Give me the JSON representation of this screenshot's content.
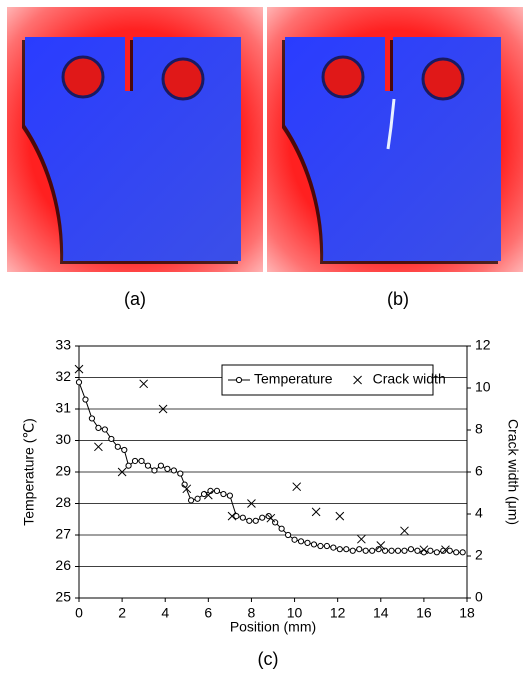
{
  "panel_labels": [
    "(a)",
    "(b)",
    "(c)"
  ],
  "chart_data": {
    "type": "line",
    "xlabel": "Position (mm)",
    "ylabel": "Temperature (℃)",
    "y2label": "Crack width (μm)",
    "xlim": [
      0,
      18
    ],
    "xticks": [
      0,
      2,
      4,
      6,
      8,
      10,
      12,
      14,
      16,
      18
    ],
    "ylim": [
      25,
      33
    ],
    "yticks": [
      25,
      26,
      27,
      28,
      29,
      30,
      31,
      32,
      33
    ],
    "y2lim": [
      0,
      12
    ],
    "y2ticks": [
      0,
      2,
      4,
      6,
      8,
      10,
      12
    ],
    "grid": true,
    "legend": "upper right",
    "series": [
      {
        "name": "Temperature",
        "color": "#000000",
        "marker": "circle",
        "line": true,
        "x": [
          0,
          0.3,
          0.6,
          0.9,
          1.2,
          1.5,
          1.8,
          2.1,
          2.3,
          2.6,
          2.9,
          3.2,
          3.5,
          3.8,
          4.1,
          4.4,
          4.7,
          4.9,
          5.2,
          5.5,
          5.8,
          6.1,
          6.4,
          6.7,
          7.0,
          7.3,
          7.6,
          7.9,
          8.2,
          8.5,
          8.8,
          9.1,
          9.4,
          9.7,
          10.0,
          10.3,
          10.6,
          10.9,
          11.2,
          11.5,
          11.8,
          12.1,
          12.4,
          12.7,
          13.0,
          13.3,
          13.6,
          13.9,
          14.2,
          14.5,
          14.8,
          15.1,
          15.4,
          15.7,
          16.0,
          16.3,
          16.6,
          16.9,
          17.2,
          17.5,
          17.8
        ],
        "values": [
          31.85,
          31.3,
          30.7,
          30.4,
          30.35,
          30.05,
          29.8,
          29.7,
          29.2,
          29.35,
          29.35,
          29.2,
          29.05,
          29.2,
          29.1,
          29.05,
          28.95,
          28.6,
          28.1,
          28.15,
          28.3,
          28.4,
          28.4,
          28.3,
          28.25,
          27.6,
          27.55,
          27.45,
          27.45,
          27.55,
          27.6,
          27.4,
          27.2,
          27.0,
          26.85,
          26.8,
          26.75,
          26.7,
          26.65,
          26.65,
          26.6,
          26.55,
          26.55,
          26.5,
          26.55,
          26.5,
          26.5,
          26.55,
          26.5,
          26.5,
          26.5,
          26.5,
          26.55,
          26.5,
          26.45,
          26.5,
          26.45,
          26.5,
          26.5,
          26.45,
          26.45
        ]
      },
      {
        "name": "Crack width",
        "color": "#000000",
        "marker": "x",
        "line": false,
        "axis": "y2",
        "x": [
          0,
          0.9,
          2.0,
          3.0,
          3.9,
          5.0,
          6.0,
          7.1,
          8.0,
          8.9,
          10.1,
          11.0,
          12.1,
          13.1,
          14.0,
          15.1,
          16.0,
          17.0
        ],
        "values": [
          10.9,
          7.2,
          6.0,
          10.2,
          9.0,
          5.2,
          4.9,
          3.9,
          4.5,
          3.8,
          5.3,
          4.1,
          3.9,
          2.8,
          2.5,
          3.2,
          2.3,
          2.3
        ]
      }
    ]
  }
}
